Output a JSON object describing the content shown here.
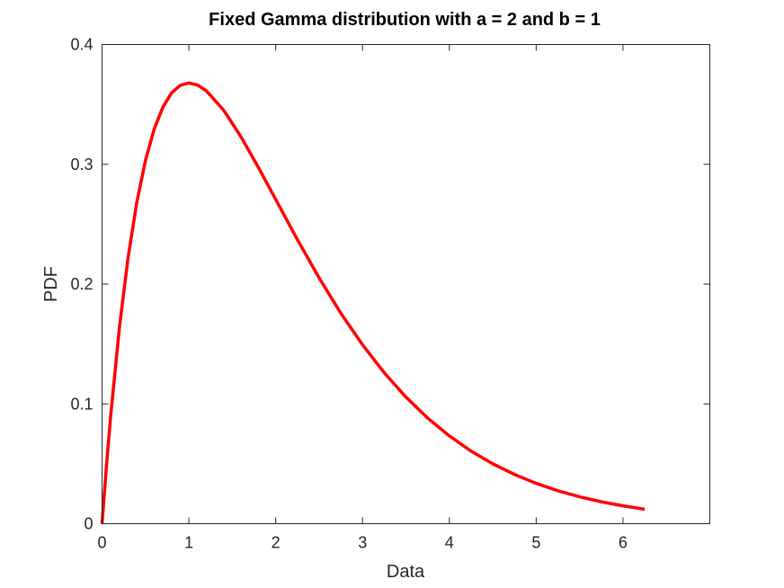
{
  "chart_data": {
    "type": "line",
    "title": "Fixed Gamma distribution with a = 2 and b = 1",
    "xlabel": "Data",
    "ylabel": "PDF",
    "xlim": [
      0,
      7
    ],
    "ylim": [
      0,
      0.4
    ],
    "x_ticks": [
      0,
      1,
      2,
      3,
      4,
      5,
      6
    ],
    "x_tick_labels": [
      "0",
      "1",
      "2",
      "3",
      "4",
      "5",
      "6"
    ],
    "y_ticks": [
      0,
      0.1,
      0.2,
      0.3,
      0.4
    ],
    "y_tick_labels": [
      "0",
      "0.1",
      "0.2",
      "0.3",
      "0.4"
    ],
    "grid": false,
    "box": true,
    "series": [
      {
        "color": "#ff0000",
        "x": [
          0,
          0.05,
          0.1,
          0.2,
          0.3,
          0.4,
          0.5,
          0.6,
          0.7,
          0.8,
          0.9,
          1.0,
          1.1,
          1.2,
          1.4,
          1.6,
          1.8,
          2.0,
          2.25,
          2.5,
          2.75,
          3.0,
          3.25,
          3.5,
          3.75,
          4.0,
          4.25,
          4.5,
          4.75,
          5.0,
          5.25,
          5.5,
          5.75,
          6.0,
          6.25
        ],
        "y": [
          0,
          0.0476,
          0.0905,
          0.1637,
          0.2222,
          0.2681,
          0.3033,
          0.3293,
          0.3476,
          0.3595,
          0.3659,
          0.3679,
          0.3662,
          0.3614,
          0.3452,
          0.323,
          0.2975,
          0.2707,
          0.2371,
          0.2052,
          0.1757,
          0.1494,
          0.126,
          0.1057,
          0.0882,
          0.0733,
          0.0606,
          0.05,
          0.0411,
          0.0337,
          0.0275,
          0.0225,
          0.0183,
          0.0149,
          0.0121
        ]
      }
    ]
  }
}
